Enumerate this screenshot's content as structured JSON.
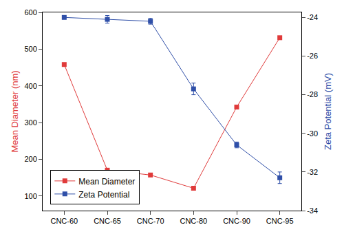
{
  "chart_data": {
    "type": "line",
    "categories": [
      "CNC-60",
      "CNC-65",
      "CNC-70",
      "CNC-80",
      "CNC-90",
      "CNC-95"
    ],
    "y_label": "Mean Diameter (nm)",
    "y2_label": "Zeta Potential (mV)",
    "ylim": [
      60,
      600
    ],
    "yticks": [
      100,
      200,
      300,
      400,
      500,
      600
    ],
    "y2lim": [
      -34,
      -23.74
    ],
    "y2ticks": [
      -34,
      -32,
      -30,
      -28,
      -26,
      -24
    ],
    "grid": false,
    "legend": "lower left",
    "series": [
      {
        "name": "Mean Diameter",
        "color": "#e03a3a",
        "marker": "square",
        "line_style": "solid",
        "values": [
          458,
          170,
          157,
          121,
          342,
          531
        ]
      },
      {
        "name": "Zeta Potential",
        "color": "#2f4fa8",
        "marker": "square",
        "line_style": "solid",
        "axis": "y2",
        "values": [
          -24.0,
          -24.1,
          -24.2,
          -27.7,
          -30.6,
          -32.3
        ],
        "errors": [
          0.05,
          0.2,
          0.15,
          0.3,
          0.15,
          0.3
        ]
      }
    ]
  }
}
